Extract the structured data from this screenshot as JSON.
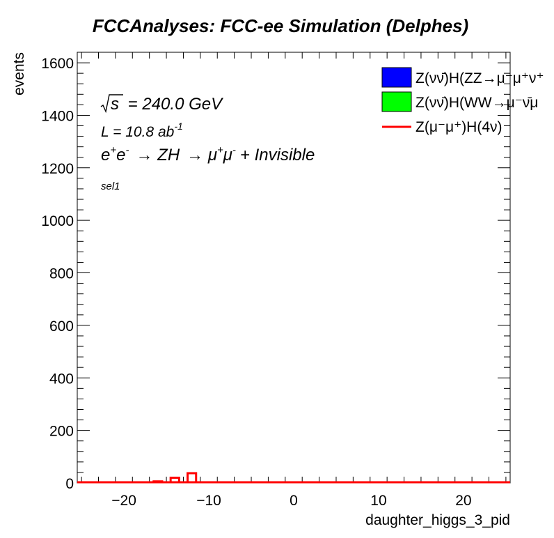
{
  "chart_data": {
    "type": "histogram",
    "title": "FCCAnalyses: FCC-ee Simulation (Delphes)",
    "xlabel": "daughter_higgs_3_pid",
    "ylabel": "events",
    "xlim": [
      -25.5,
      25.5
    ],
    "ylim": [
      0,
      1640
    ],
    "x_ticks": [
      -20,
      -10,
      0,
      10,
      20
    ],
    "y_ticks": [
      0,
      200,
      400,
      600,
      800,
      1000,
      1200,
      1400,
      1600
    ],
    "annotations": {
      "sqrt_s": "= 240.0 GeV",
      "lumi": "L = 10.8 ab",
      "lumi_exp": "-1",
      "process_tail": "+ Invisible",
      "selection": "sel1"
    },
    "legend_placement": "top-right",
    "series": [
      {
        "name": "Z(νν̄)H(ZZ→μ⁻μ⁺ν⁺",
        "style": "filled",
        "color": "#0000ff",
        "bins": []
      },
      {
        "name": "Z(νν̄)H(WW→μ⁻ν̄μ",
        "style": "filled",
        "color": "#00ff00",
        "bins": []
      },
      {
        "name": "Z(μ⁻μ⁺)H(4ν)",
        "style": "line",
        "color": "#ff0000",
        "bins": [
          {
            "x": -16,
            "y": 6
          },
          {
            "x": -14,
            "y": 20
          },
          {
            "x": -12,
            "y": 37
          }
        ]
      }
    ]
  }
}
